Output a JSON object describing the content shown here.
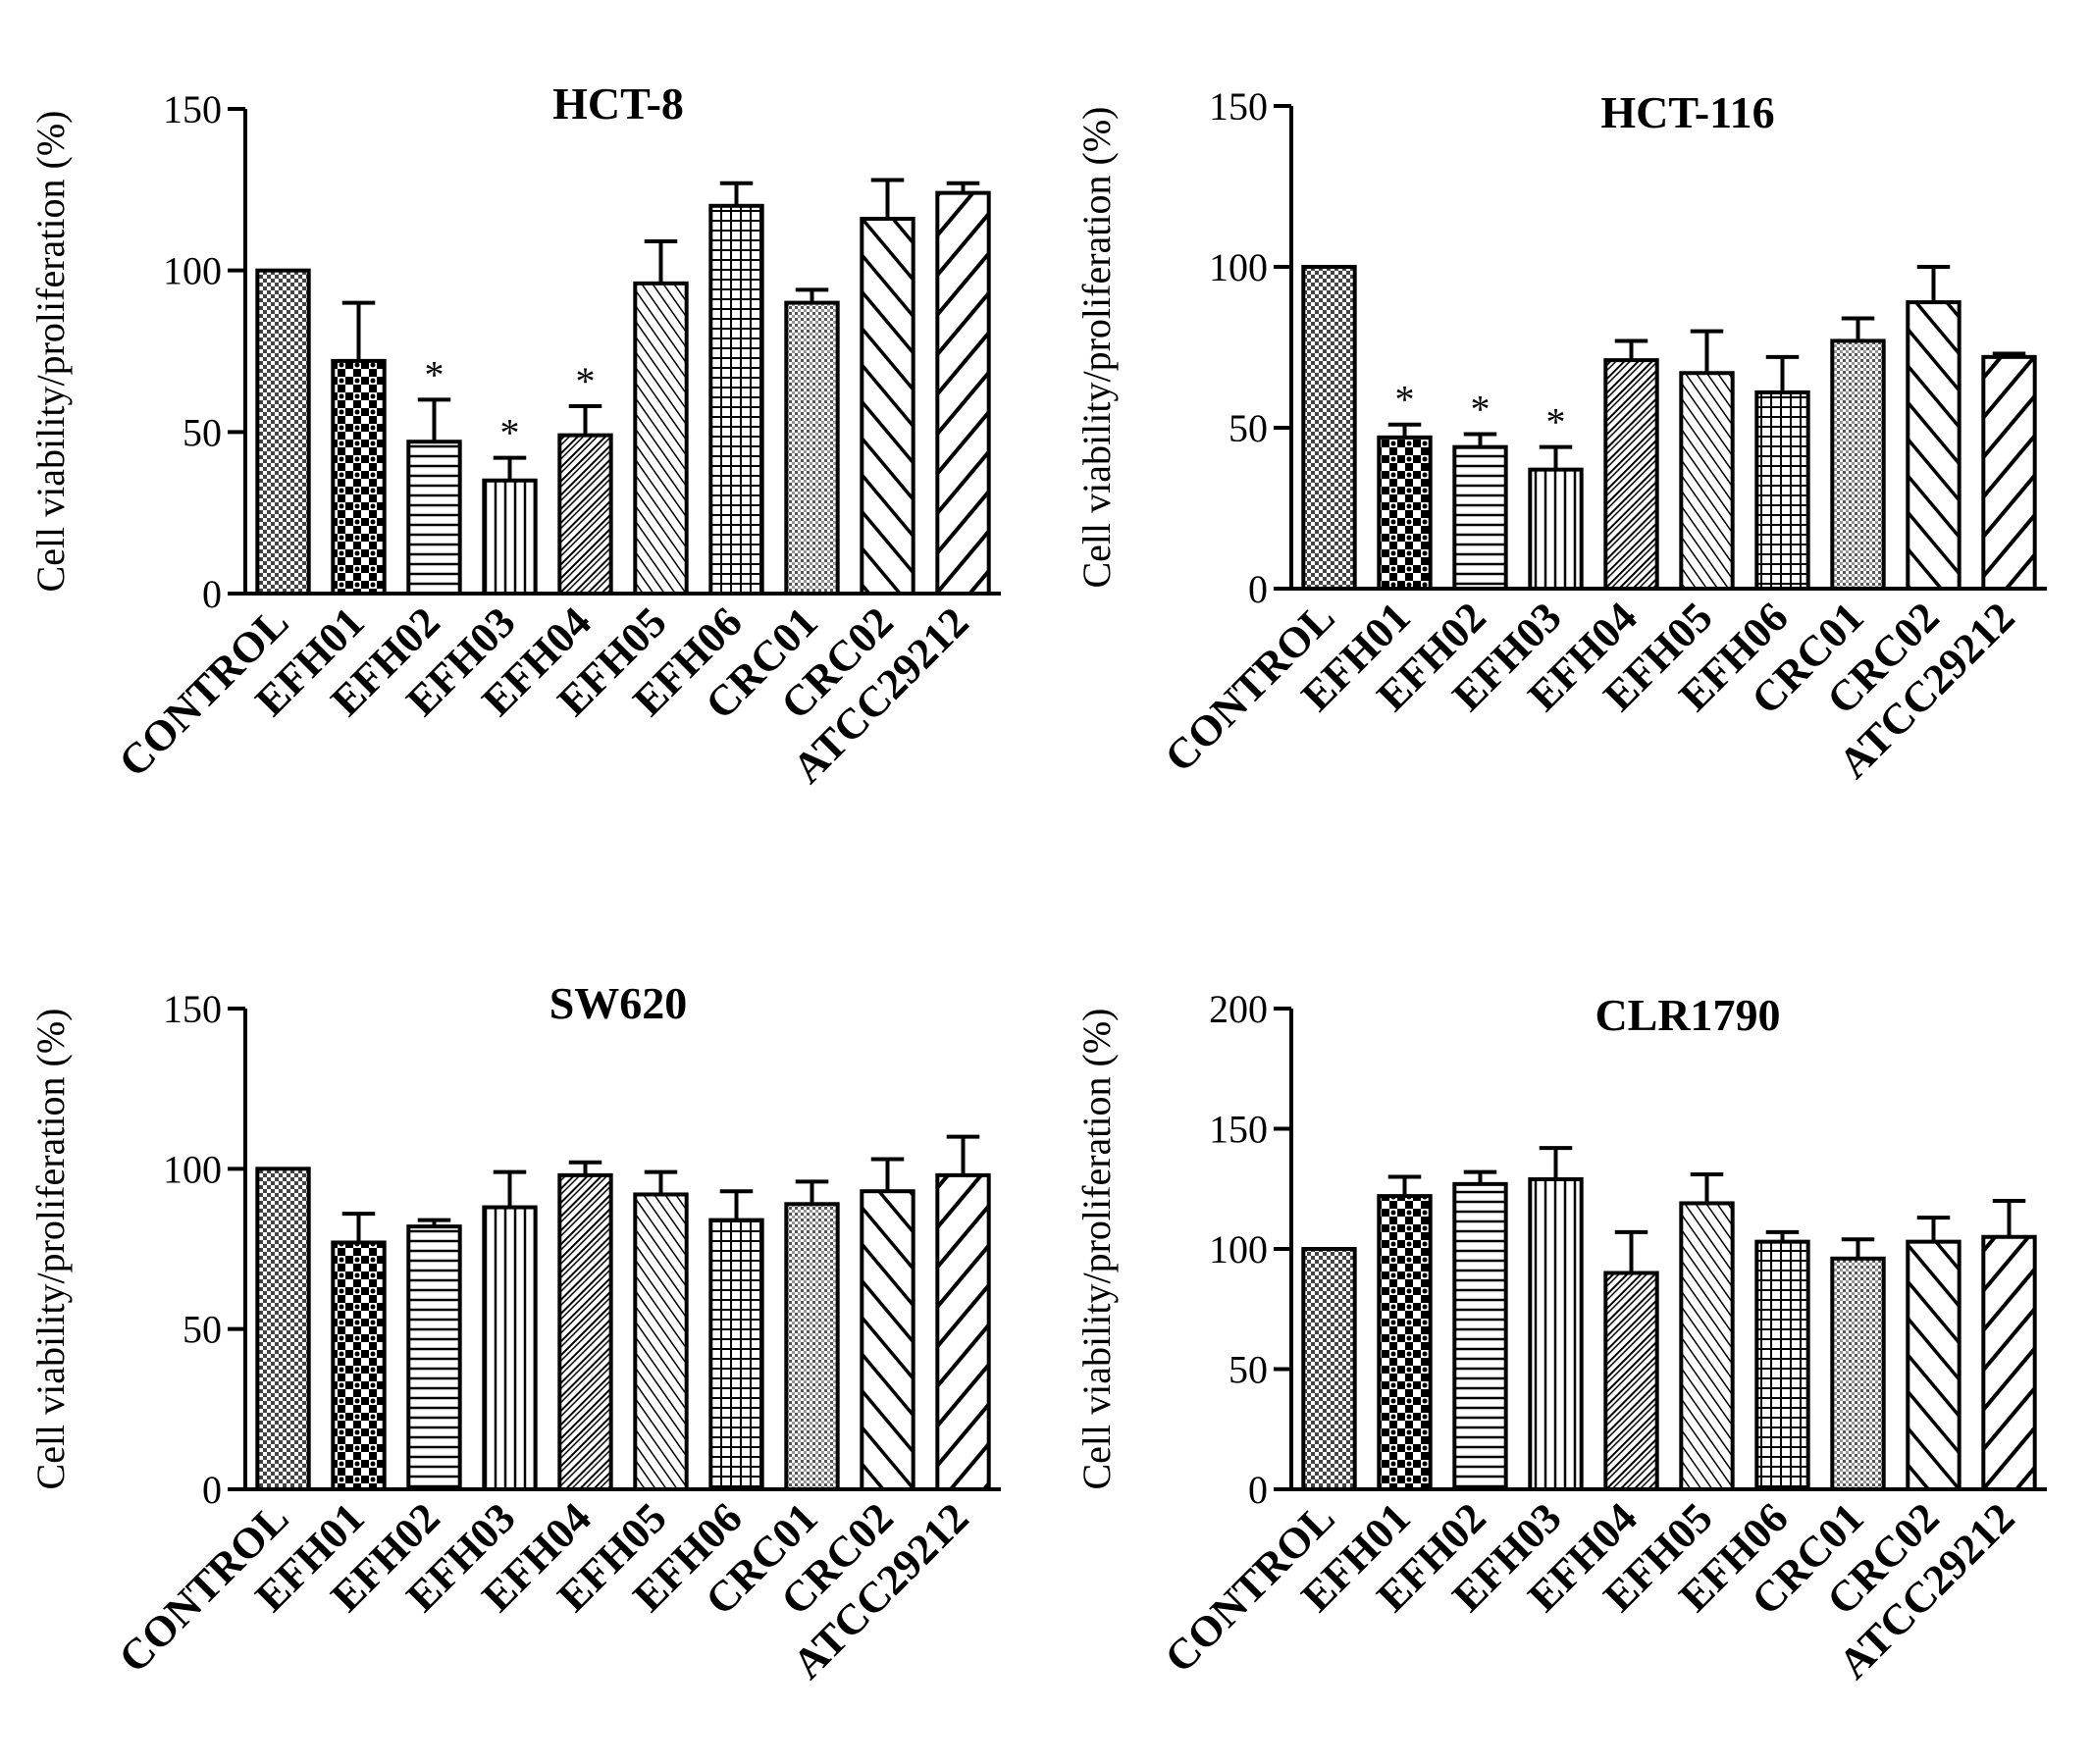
{
  "chart_data": [
    {
      "type": "bar",
      "title": "HCT-8",
      "ylabel": "Cell viability/proliferation (%)",
      "xlabel": "",
      "ylim": [
        0,
        150
      ],
      "yticks": [
        "0",
        "50",
        "100",
        "150"
      ],
      "categories": [
        "CONTROL",
        "EFH01",
        "EFH02",
        "EFH03",
        "EFH04",
        "EFH05",
        "EFH06",
        "CRC01",
        "CRC02",
        "ATCC29212"
      ],
      "values": [
        100,
        72,
        47,
        35,
        49,
        96,
        120,
        90,
        116,
        124
      ],
      "errors": [
        0,
        18,
        13,
        7,
        9,
        13,
        7,
        4,
        12,
        3
      ],
      "annotations": [
        "",
        "",
        "*",
        "*",
        "*",
        "",
        "",
        "",
        "",
        ""
      ]
    },
    {
      "type": "bar",
      "title": "HCT-116",
      "ylabel": "Cell viability/proliferation (%)",
      "xlabel": "",
      "ylim": [
        0,
        150
      ],
      "yticks": [
        "0",
        "50",
        "100",
        "150"
      ],
      "categories": [
        "CONTROL",
        "EFH01",
        "EFH02",
        "EFH03",
        "EFH04",
        "EFH05",
        "EFH06",
        "CRC01",
        "CRC02",
        "ATCC29212"
      ],
      "values": [
        100,
        47,
        44,
        37,
        71,
        67,
        61,
        77,
        89,
        72
      ],
      "errors": [
        0,
        4,
        4,
        7,
        6,
        13,
        11,
        7,
        11,
        1
      ],
      "annotations": [
        "",
        "*",
        "*",
        "*",
        "",
        "",
        "",
        "",
        "",
        ""
      ]
    },
    {
      "type": "bar",
      "title": "SW620",
      "ylabel": "Cell viability/proliferation (%)",
      "xlabel": "",
      "ylim": [
        0,
        150
      ],
      "yticks": [
        "0",
        "50",
        "100",
        "150"
      ],
      "categories": [
        "CONTROL",
        "EFH01",
        "EFH02",
        "EFH03",
        "EFH04",
        "EFH05",
        "EFH06",
        "CRC01",
        "CRC02",
        "ATCC29212"
      ],
      "values": [
        100,
        77,
        82,
        88,
        98,
        92,
        84,
        89,
        93,
        98
      ],
      "errors": [
        0,
        9,
        2,
        11,
        4,
        7,
        9,
        7,
        10,
        12
      ],
      "annotations": [
        "",
        "",
        "",
        "",
        "",
        "",
        "",
        "",
        "",
        ""
      ]
    },
    {
      "type": "bar",
      "title": "CLR1790",
      "ylabel": "Cell viability/proliferation (%)",
      "xlabel": "",
      "ylim": [
        0,
        200
      ],
      "yticks": [
        "0",
        "50",
        "100",
        "150",
        "200"
      ],
      "categories": [
        "CONTROL",
        "EFH01",
        "EFH02",
        "EFH03",
        "EFH04",
        "EFH05",
        "EFH06",
        "CRC01",
        "CRC02",
        "ATCC29212"
      ],
      "values": [
        100,
        122,
        127,
        129,
        90,
        119,
        103,
        96,
        103,
        105
      ],
      "errors": [
        0,
        8,
        5,
        13,
        17,
        12,
        4,
        8,
        10,
        15
      ],
      "annotations": [
        "",
        "",
        "",
        "",
        "",
        "",
        "",
        "",
        "",
        ""
      ]
    }
  ]
}
